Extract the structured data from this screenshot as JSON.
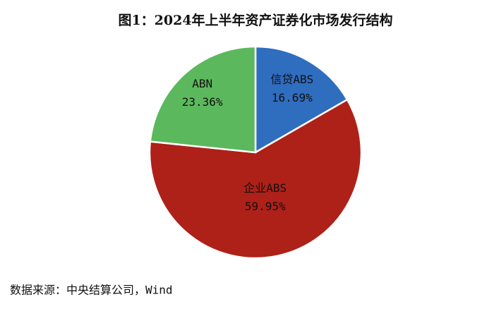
{
  "chart_data": {
    "type": "pie",
    "title": "图1：2024年上半年资产证券化市场发行结构",
    "categories": [
      "信贷ABS",
      "企业ABS",
      "ABN"
    ],
    "values": [
      16.69,
      59.95,
      23.36
    ],
    "value_labels": [
      "16.69%",
      "59.95%",
      "23.36%"
    ],
    "colors": [
      "#2f6dbf",
      "#ae2118",
      "#5cb85c"
    ],
    "source": "数据来源：中央结算公司，Wind"
  }
}
